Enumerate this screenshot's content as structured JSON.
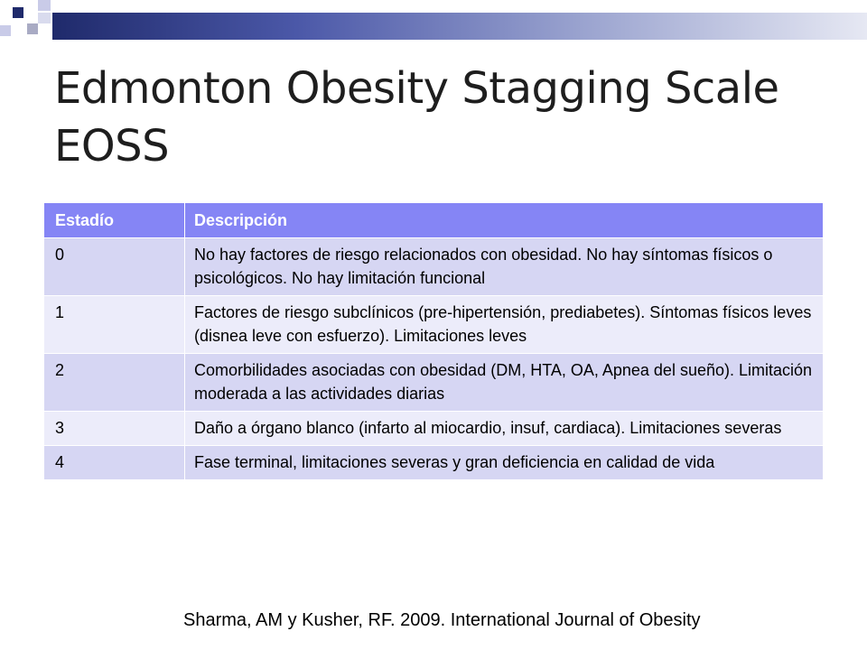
{
  "slide": {
    "title_line1": "Edmonton Obesity Stagging Scale",
    "title_line2": "EOSS",
    "citation": "Sharma, AM y Kusher, RF.  2009.  International Journal of Obesity"
  },
  "table": {
    "headers": [
      "Estadío",
      "Descripción"
    ],
    "rows": [
      {
        "stage": "0",
        "description": "No hay factores de riesgo relacionados con obesidad.  No hay síntomas físicos o psicológicos.  No hay limitación funcional"
      },
      {
        "stage": "1",
        "description": "Factores de riesgo subclínicos (pre-hipertensión, prediabetes).  Síntomas físicos leves (disnea leve con esfuerzo).  Limitaciones leves"
      },
      {
        "stage": "2",
        "description": "Comorbilidades asociadas con obesidad (DM, HTA, OA, Apnea del sueño).  Limitación moderada a las actividades diarias"
      },
      {
        "stage": "3",
        "description": "Daño a órgano blanco (infarto al miocardio, insuf, cardiaca).  Limitaciones severas"
      },
      {
        "stage": "4",
        "description": "Fase terminal, limitaciones severas y gran deficiencia en calidad de vida"
      }
    ]
  },
  "colors": {
    "header_fill": "#8585f5",
    "row_fill_dark": "#d6d6f3",
    "row_fill_light": "#ececfa",
    "decor_navy": "#1f2a6b"
  }
}
